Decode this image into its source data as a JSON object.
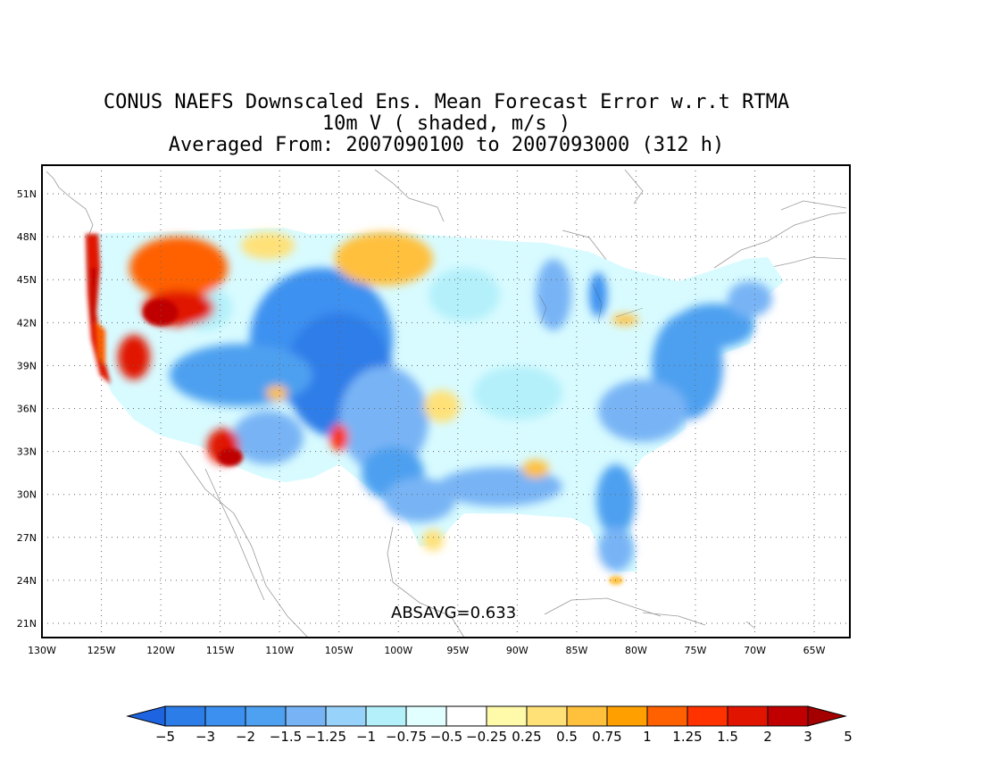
{
  "title": {
    "line1": "CONUS NAEFS Downscaled Ens. Mean Forecast Error w.r.t RTMA",
    "line2": "10m V ( shaded, m/s )",
    "line3": "Averaged From: 2007090100 to 2007093000 (312 h)"
  },
  "map": {
    "lat_labels": [
      "51N",
      "48N",
      "45N",
      "42N",
      "39N",
      "36N",
      "33N",
      "30N",
      "27N",
      "24N",
      "21N"
    ],
    "lat_values": [
      51,
      48,
      45,
      42,
      39,
      36,
      33,
      30,
      27,
      24,
      21
    ],
    "lon_labels": [
      "130W",
      "125W",
      "120W",
      "115W",
      "110W",
      "105W",
      "100W",
      "95W",
      "90W",
      "85W",
      "80W",
      "75W",
      "70W",
      "65W"
    ],
    "lon_values": [
      -130,
      -125,
      -120,
      -115,
      -110,
      -105,
      -100,
      -95,
      -90,
      -85,
      -80,
      -75,
      -70,
      -65
    ],
    "lon_range": [
      -130,
      -62
    ],
    "lat_range": [
      20,
      53
    ],
    "grid": true
  },
  "stat": {
    "text": "ABSAVG=0.633"
  },
  "colorbar": {
    "colors": [
      "#1e64e0",
      "#2d7de8",
      "#3c91f0",
      "#4ea0f0",
      "#78b4f5",
      "#96d2fa",
      "#b4f0fa",
      "#e1ffff",
      "#ffffff",
      "#fffaaa",
      "#ffe178",
      "#ffc03c",
      "#ffa000",
      "#ff6000",
      "#ff3200",
      "#e11400",
      "#c00000",
      "#a50000"
    ],
    "labels": [
      "−5",
      "−3",
      "−2",
      "−1.5",
      "−1.25",
      "−1",
      "−0.75",
      "−0.5",
      "−0.25",
      "0.25",
      "0.5",
      "0.75",
      "1",
      "1.25",
      "1.5",
      "2",
      "3",
      "5"
    ]
  }
}
